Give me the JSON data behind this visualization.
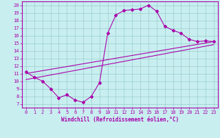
{
  "xlabel": "Windchill (Refroidissement éolien,°C)",
  "bg_color": "#c8eef0",
  "line_color": "#aa00aa",
  "grid_color": "#99cccc",
  "xlim": [
    -0.5,
    23.5
  ],
  "ylim": [
    6.5,
    20.5
  ],
  "xticks": [
    0,
    1,
    2,
    3,
    4,
    5,
    6,
    7,
    8,
    9,
    10,
    11,
    12,
    13,
    14,
    15,
    16,
    17,
    18,
    19,
    20,
    21,
    22,
    23
  ],
  "yticks": [
    7,
    8,
    9,
    10,
    11,
    12,
    13,
    14,
    15,
    16,
    17,
    18,
    19,
    20
  ],
  "curve_x": [
    0,
    1,
    2,
    3,
    4,
    5,
    6,
    7,
    8,
    9,
    10,
    11,
    12,
    13,
    14,
    15,
    16,
    17,
    18,
    19,
    20,
    21,
    22,
    23
  ],
  "curve_y": [
    11.2,
    10.5,
    10.0,
    9.0,
    7.8,
    8.2,
    7.5,
    7.2,
    8.0,
    9.8,
    16.3,
    18.7,
    19.3,
    19.4,
    19.5,
    20.0,
    19.2,
    17.2,
    16.7,
    16.3,
    15.5,
    15.2,
    15.3,
    15.2
  ],
  "line1_x": [
    0,
    23
  ],
  "line1_y": [
    11.0,
    15.2
  ],
  "line2_x": [
    0,
    23
  ],
  "line2_y": [
    10.2,
    14.8
  ],
  "tick_fontsize": 5,
  "xlabel_fontsize": 5.5,
  "lw": 0.8,
  "marker_size": 2.0
}
